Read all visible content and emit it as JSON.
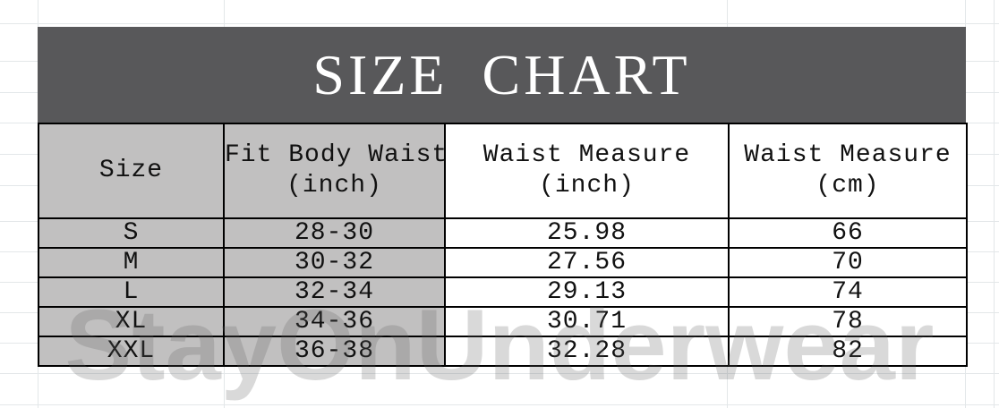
{
  "title": "SIZE CHART",
  "watermark": "StayOnUnderwear",
  "colors": {
    "title_bar_bg": "#58585A",
    "title_text": "#FFFFFF",
    "shaded_cell_bg": "#C1C0C0",
    "table_border": "#000000",
    "cell_text": "#111111",
    "background_gridline": "#E3E7E9"
  },
  "table": {
    "columns": [
      {
        "label": "Size",
        "sub": ""
      },
      {
        "label": "Fit Body Waist",
        "sub": "(inch)"
      },
      {
        "label": "Waist Measure",
        "sub": "(inch)"
      },
      {
        "label": "Waist Measure",
        "sub": "(cm)"
      }
    ],
    "rows": [
      [
        "S",
        "28-30",
        "25.98",
        "66"
      ],
      [
        "M",
        "30-32",
        "27.56",
        "70"
      ],
      [
        "L",
        "32-34",
        "29.13",
        "74"
      ],
      [
        "XL",
        "34-36",
        "30.71",
        "78"
      ],
      [
        "XXL",
        "36-38",
        "32.28",
        "82"
      ]
    ]
  },
  "chart_data": {
    "type": "table",
    "title": "SIZE CHART",
    "columns": [
      "Size",
      "Fit Body Waist (inch)",
      "Waist Measure (inch)",
      "Waist Measure (cm)"
    ],
    "rows": [
      [
        "S",
        "28-30",
        "25.98",
        "66"
      ],
      [
        "M",
        "30-32",
        "27.56",
        "70"
      ],
      [
        "L",
        "32-34",
        "29.13",
        "74"
      ],
      [
        "XL",
        "34-36",
        "30.71",
        "78"
      ],
      [
        "XXL",
        "36-38",
        "32.28",
        "82"
      ]
    ]
  }
}
